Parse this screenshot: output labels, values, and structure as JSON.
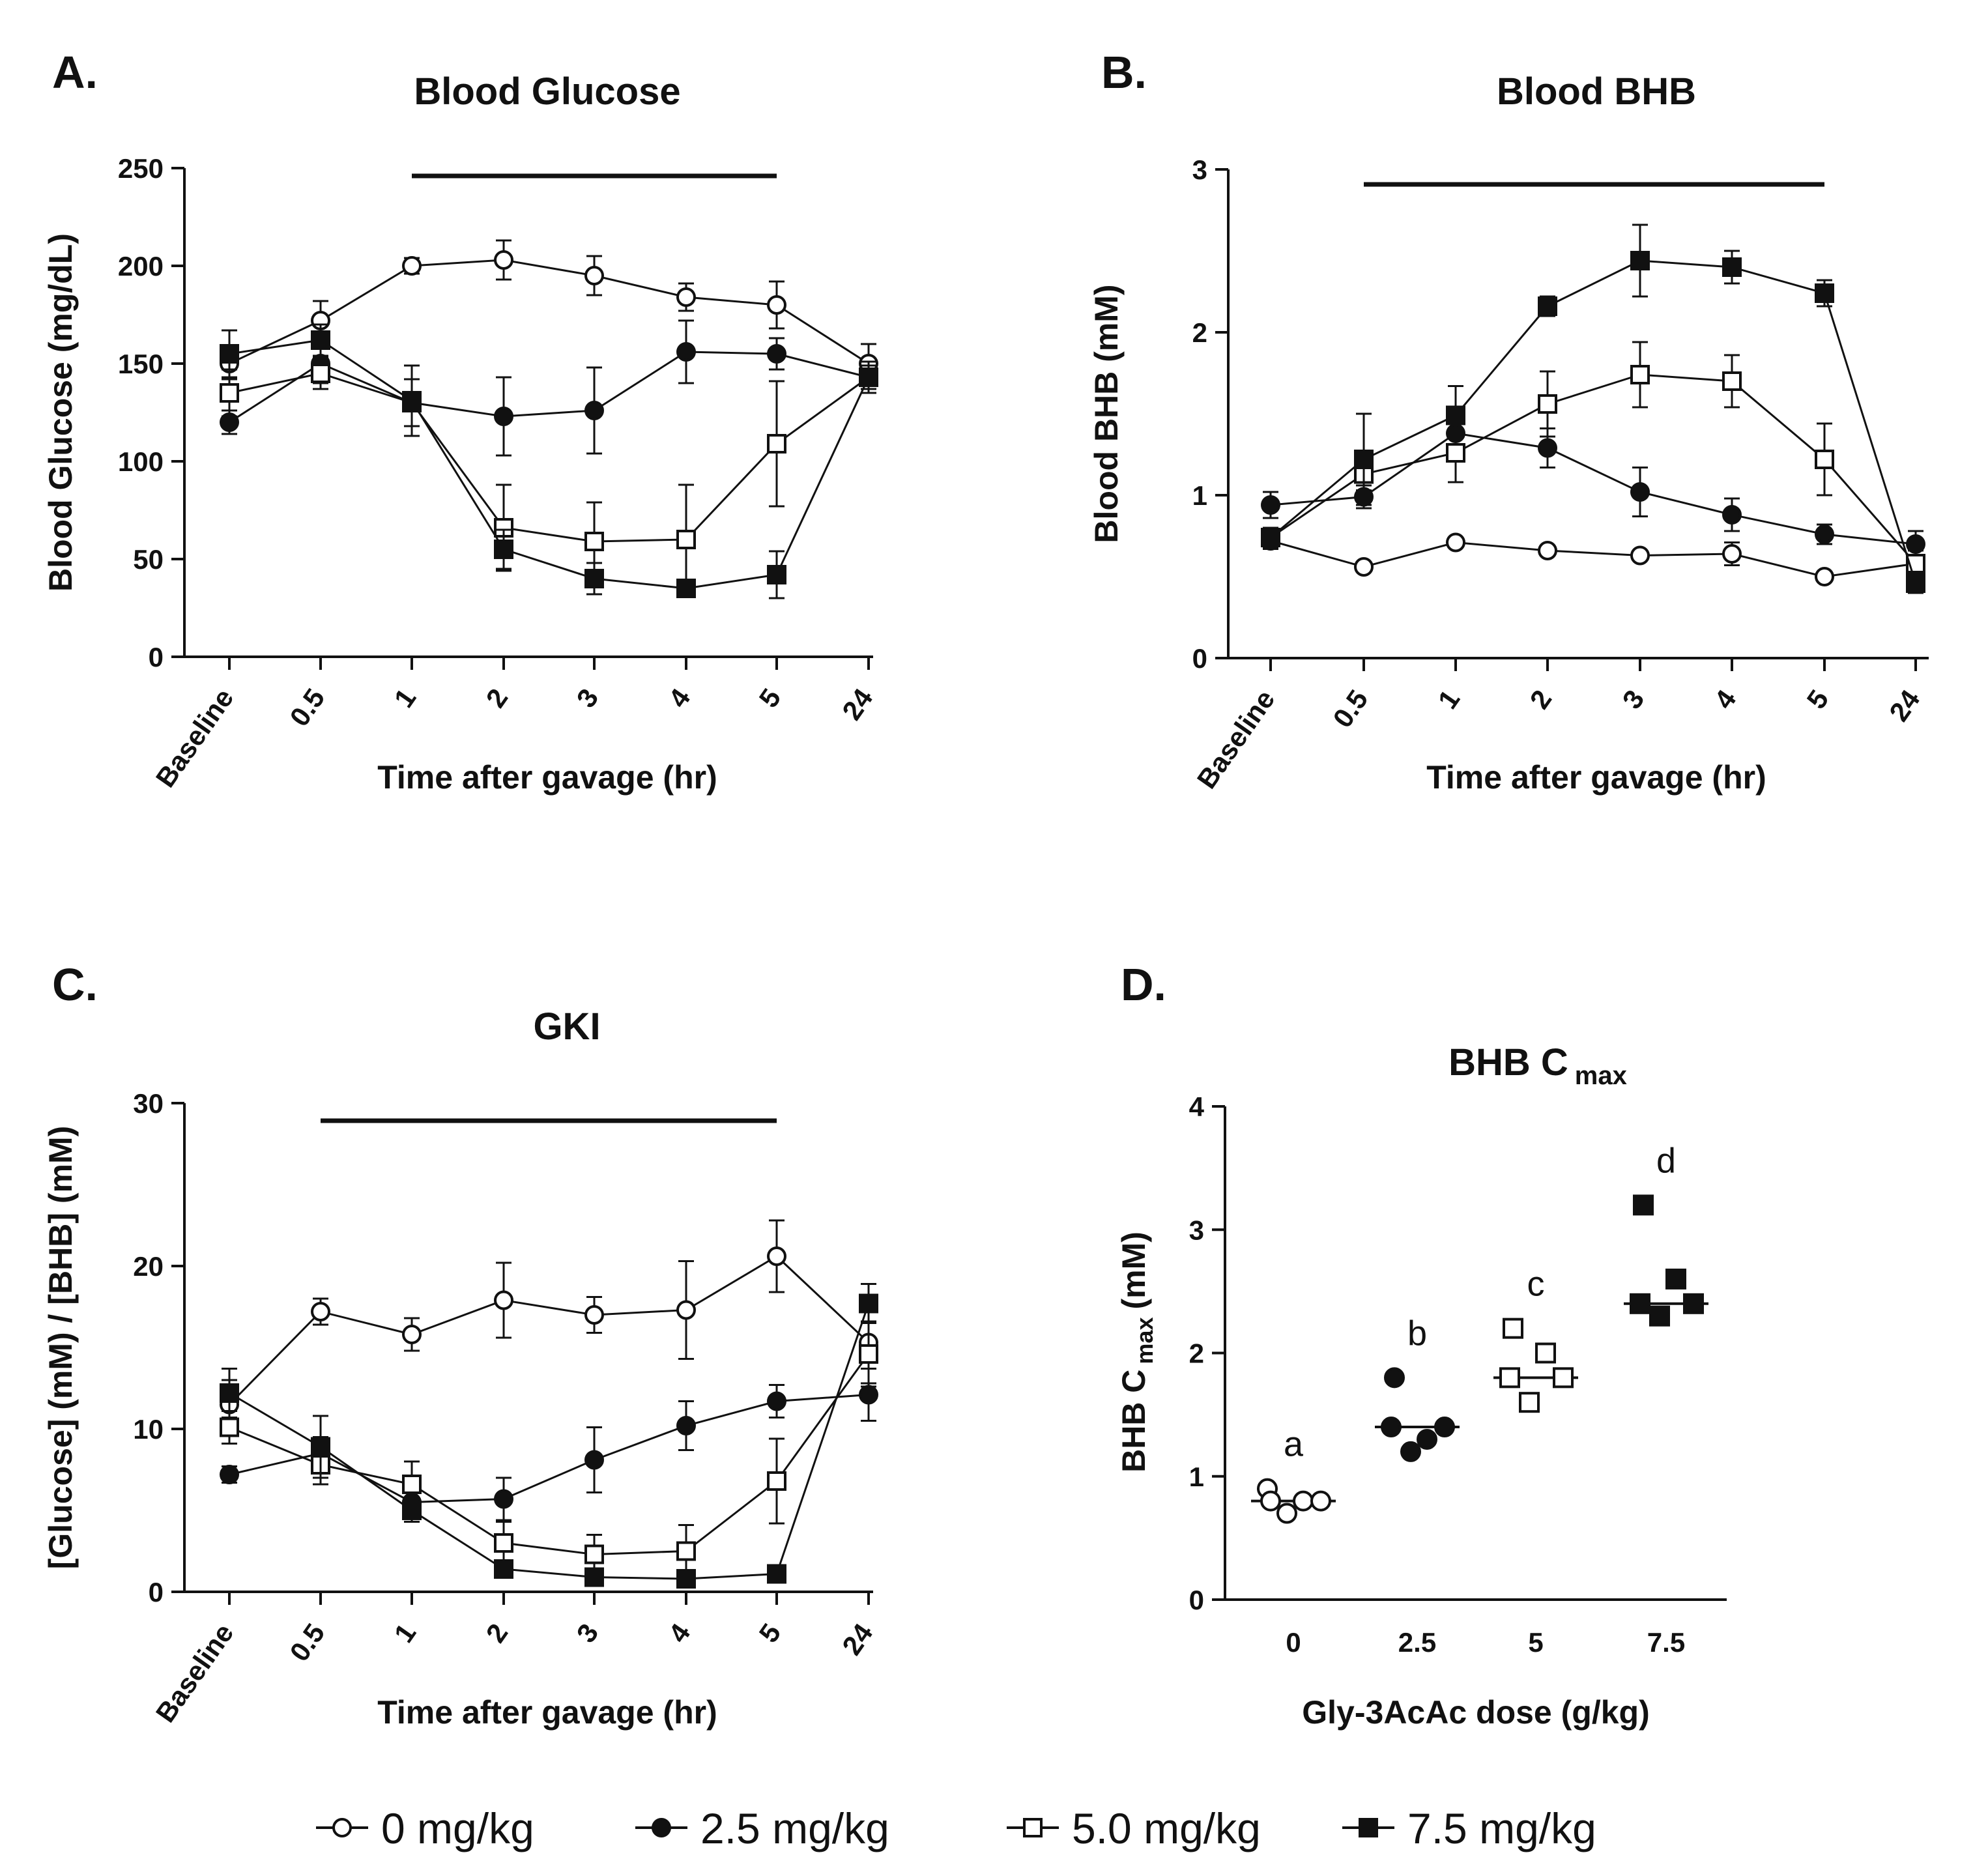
{
  "colors": {
    "ink": "#111111",
    "open_fill": "#ffffff",
    "filled": "#111111"
  },
  "legend": {
    "entries": [
      {
        "label": "0 mg/kg",
        "marker": "circle-open"
      },
      {
        "label": "2.5 mg/kg",
        "marker": "circle-filled"
      },
      {
        "label": "5.0 mg/kg",
        "marker": "square-open"
      },
      {
        "label": "7.5 mg/kg",
        "marker": "square-filled"
      }
    ]
  },
  "chart_data": [
    {
      "panel": "A.",
      "type": "line",
      "title": "Blood Glucose",
      "xlabel": "Time after gavage (hr)",
      "ylabel": "Blood Glucose (mg/dL)",
      "categories": [
        "Baseline",
        "0.5",
        "1",
        "2",
        "3",
        "4",
        "5",
        "24"
      ],
      "ylim": [
        0,
        250
      ],
      "yticks": [
        0,
        50,
        100,
        150,
        200,
        250
      ],
      "bar_span": [
        1,
        5
      ],
      "series": [
        {
          "name": "0 mg/kg",
          "marker": "circle-open",
          "values": [
            150,
            172,
            200,
            203,
            195,
            184,
            180,
            150
          ],
          "err": [
            8,
            10,
            4,
            10,
            10,
            7,
            12,
            10
          ]
        },
        {
          "name": "2.5 mg/kg",
          "marker": "circle-filled",
          "values": [
            120,
            150,
            130,
            123,
            126,
            156,
            155,
            143
          ],
          "err": [
            6,
            10,
            12,
            20,
            22,
            16,
            8,
            8
          ]
        },
        {
          "name": "5.0 mg/kg",
          "marker": "square-open",
          "values": [
            135,
            145,
            130,
            66,
            59,
            60,
            109,
            143
          ],
          "err": [
            12,
            8,
            12,
            22,
            20,
            28,
            32,
            8
          ]
        },
        {
          "name": "7.5 mg/kg",
          "marker": "square-filled",
          "values": [
            155,
            162,
            131,
            55,
            40,
            35,
            42,
            143
          ],
          "err": [
            12,
            8,
            18,
            10,
            8,
            4,
            12,
            6
          ]
        }
      ]
    },
    {
      "panel": "B.",
      "type": "line",
      "title": "Blood BHB",
      "xlabel": "Time after gavage (hr)",
      "ylabel": "Blood BHB (mM)",
      "categories": [
        "Baseline",
        "0.5",
        "1",
        "2",
        "3",
        "4",
        "5",
        "24"
      ],
      "ylim": [
        0,
        3
      ],
      "yticks": [
        0,
        1,
        2,
        3
      ],
      "bar_span": [
        0.5,
        5
      ],
      "series": [
        {
          "name": "0 mg/kg",
          "marker": "circle-open",
          "values": [
            0.72,
            0.56,
            0.71,
            0.66,
            0.63,
            0.64,
            0.5,
            0.58
          ],
          "err": [
            0.05,
            0.03,
            0.03,
            0.03,
            0.03,
            0.07,
            0.03,
            0.05
          ]
        },
        {
          "name": "2.5 mg/kg",
          "marker": "circle-filled",
          "values": [
            0.94,
            0.99,
            1.38,
            1.29,
            1.02,
            0.88,
            0.76,
            0.7
          ],
          "err": [
            0.08,
            0.07,
            0.12,
            0.12,
            0.15,
            0.1,
            0.06,
            0.08
          ]
        },
        {
          "name": "5.0 mg/kg",
          "marker": "square-open",
          "values": [
            0.74,
            1.13,
            1.26,
            1.56,
            1.74,
            1.7,
            1.22,
            0.58
          ],
          "err": [
            0.06,
            0.1,
            0.18,
            0.2,
            0.2,
            0.16,
            0.22,
            0.08
          ]
        },
        {
          "name": "7.5 mg/kg",
          "marker": "square-filled",
          "values": [
            0.74,
            1.22,
            1.49,
            2.16,
            2.44,
            2.4,
            2.24,
            0.46
          ],
          "err": [
            0.06,
            0.28,
            0.18,
            0.06,
            0.22,
            0.1,
            0.08,
            0.06
          ]
        }
      ]
    },
    {
      "panel": "C.",
      "type": "line",
      "title": "GKI",
      "xlabel": "Time after gavage (hr)",
      "ylabel": "[Glucose] (mM) / [BHB] (mM)",
      "categories": [
        "Baseline",
        "0.5",
        "1",
        "2",
        "3",
        "4",
        "5",
        "24"
      ],
      "ylim": [
        0,
        30
      ],
      "yticks": [
        0,
        10,
        20,
        30
      ],
      "bar_span": [
        0.5,
        5
      ],
      "series": [
        {
          "name": "0 mg/kg",
          "marker": "circle-open",
          "values": [
            11.5,
            17.2,
            15.8,
            17.9,
            17.0,
            17.3,
            20.6,
            15.3
          ],
          "err": [
            1.5,
            0.8,
            1.0,
            2.3,
            1.1,
            3.0,
            2.2,
            2.5
          ]
        },
        {
          "name": "2.5 mg/kg",
          "marker": "circle-filled",
          "values": [
            7.2,
            8.5,
            5.5,
            5.7,
            8.1,
            10.2,
            11.7,
            12.1
          ],
          "err": [
            0.5,
            1.0,
            0.8,
            1.3,
            2.0,
            1.5,
            1.0,
            1.6
          ]
        },
        {
          "name": "5.0 mg/kg",
          "marker": "square-open",
          "values": [
            10.1,
            7.8,
            6.6,
            3.0,
            2.3,
            2.5,
            6.8,
            14.6
          ],
          "err": [
            1.0,
            1.2,
            1.4,
            1.3,
            1.2,
            1.6,
            2.6,
            2.0
          ]
        },
        {
          "name": "7.5 mg/kg",
          "marker": "square-filled",
          "values": [
            12.2,
            8.9,
            5.0,
            1.4,
            0.9,
            0.8,
            1.1,
            17.7
          ],
          "err": [
            1.5,
            1.9,
            0.7,
            0.3,
            0.2,
            0.2,
            0.2,
            1.2
          ]
        }
      ]
    },
    {
      "panel": "D.",
      "type": "scatter",
      "title": "BHB C",
      "title_sub": "max",
      "xlabel": "Gly-3AcAc dose (g/kg)",
      "ylabel": "BHB C",
      "ylabel_sub": "max",
      "ylabel_unit": "(mM)",
      "categories": [
        "0",
        "2.5",
        "5",
        "7.5"
      ],
      "ylim": [
        0,
        4
      ],
      "yticks": [
        0,
        1,
        2,
        3,
        4
      ],
      "groups": [
        {
          "name": "0 mg/kg",
          "marker": "circle-open",
          "letter": "a",
          "median": 0.8,
          "points": [
            0.9,
            0.8,
            0.7,
            0.8,
            0.8
          ]
        },
        {
          "name": "2.5 mg/kg",
          "marker": "circle-filled",
          "letter": "b",
          "median": 1.4,
          "points": [
            1.4,
            1.8,
            1.2,
            1.3,
            1.4
          ]
        },
        {
          "name": "5.0 mg/kg",
          "marker": "square-open",
          "letter": "c",
          "median": 1.8,
          "points": [
            1.8,
            2.2,
            1.6,
            2.0,
            1.8
          ]
        },
        {
          "name": "7.5 mg/kg",
          "marker": "square-filled",
          "letter": "d",
          "median": 2.4,
          "points": [
            2.4,
            3.2,
            2.3,
            2.6,
            2.4
          ]
        }
      ]
    }
  ]
}
